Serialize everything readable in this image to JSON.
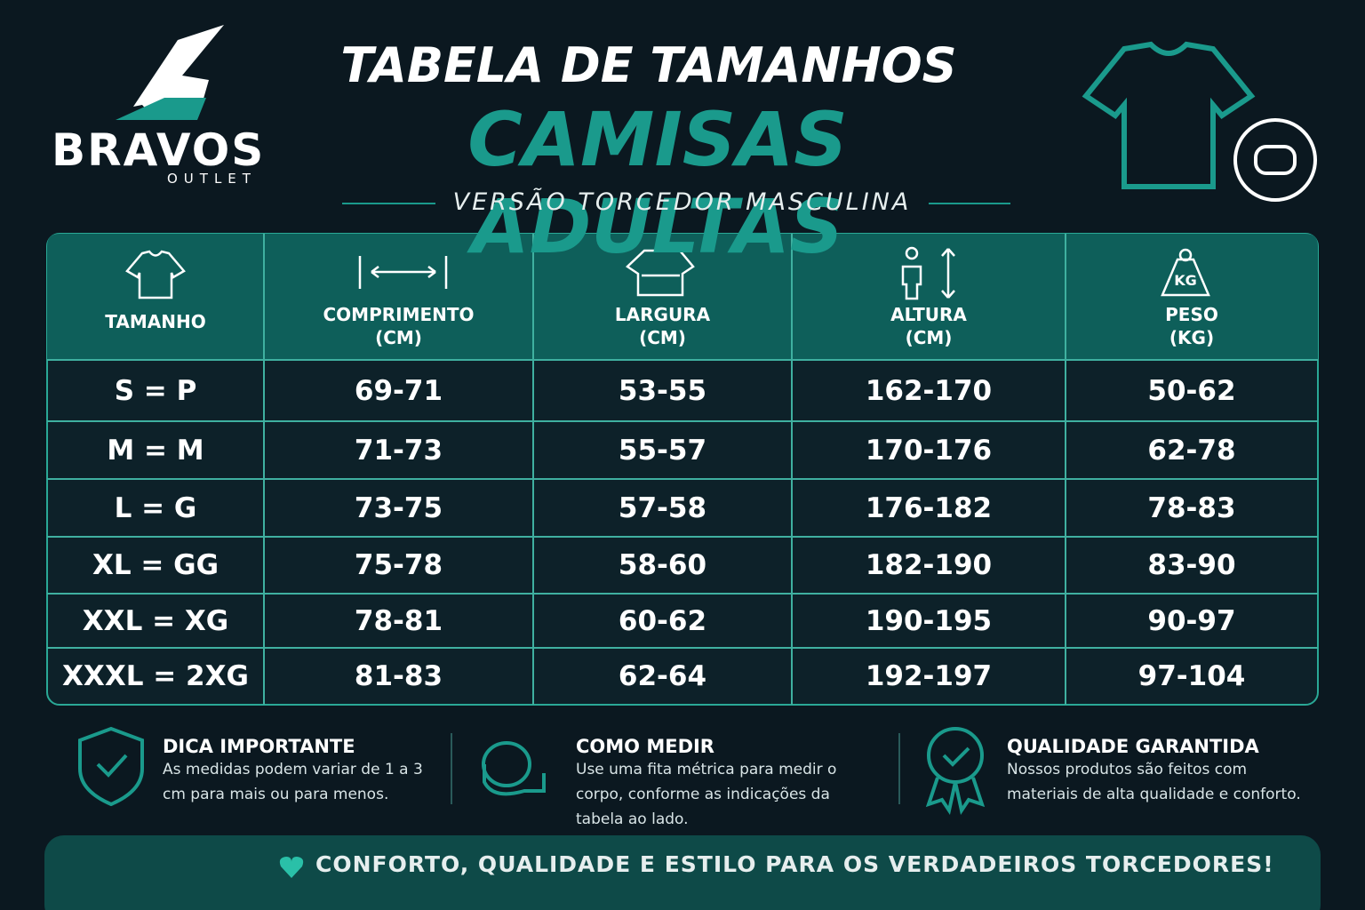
{
  "logo": {
    "name": "BRAVOS",
    "sub": "OUTLET"
  },
  "header": {
    "title": "TABELA DE TAMANHOS",
    "headline": "CAMISAS ADULTAS",
    "subtitle": "VERSÃO TORCEDOR MASCULINA"
  },
  "table": {
    "columns": [
      {
        "label": "TAMANHO"
      },
      {
        "label": "COMPRIMENTO",
        "unit": "(CM)"
      },
      {
        "label": "LARGURA",
        "unit": "(CM)"
      },
      {
        "label": "ALTURA",
        "unit": "(CM)"
      },
      {
        "label": "PESO",
        "unit": "(KG)",
        "icon_label": "KG"
      }
    ],
    "rows": [
      [
        "S = P",
        "69-71",
        "53-55",
        "162-170",
        "50-62"
      ],
      [
        "M = M",
        "71-73",
        "55-57",
        "170-176",
        "62-78"
      ],
      [
        "L = G",
        "73-75",
        "57-58",
        "176-182",
        "78-83"
      ],
      [
        "XL = GG",
        "75-78",
        "58-60",
        "182-190",
        "83-90"
      ],
      [
        "XXL = XG",
        "78-81",
        "60-62",
        "190-195",
        "90-97"
      ],
      [
        "XXXL = 2XG",
        "81-83",
        "62-64",
        "192-197",
        "97-104"
      ]
    ]
  },
  "tips": [
    {
      "title": "DICA IMPORTANTE",
      "text": "As medidas podem variar de 1 a 3 cm para mais ou para menos."
    },
    {
      "title": "COMO MEDIR",
      "text": "Use uma fita métrica para medir o corpo, conforme as indicações da tabela ao lado."
    },
    {
      "title": "QUALIDADE GARANTIDA",
      "text": "Nossos produtos são feitos com materiais de alta qualidade e conforto."
    }
  ],
  "footer": {
    "text": "CONFORTO, QUALIDADE E ESTILO PARA OS VERDADEIROS TORCEDORES!"
  }
}
